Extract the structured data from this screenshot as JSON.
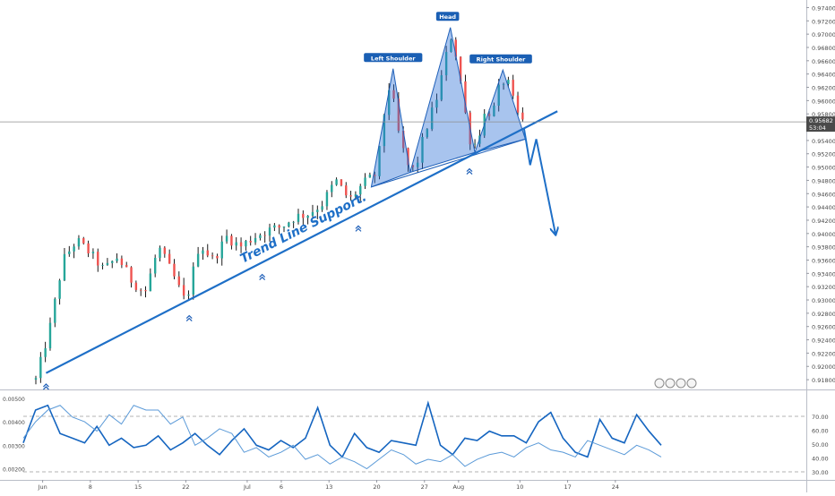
{
  "chart_data": [
    {
      "type": "candlestick",
      "title": "",
      "price_axis": {
        "ylim": [
          0.9168,
          0.9746
        ],
        "ticks": [
          "0.97400",
          "0.97200",
          "0.97000",
          "0.96800",
          "0.96600",
          "0.96400",
          "0.96200",
          "0.96000",
          "0.95800",
          "0.95600",
          "0.95400",
          "0.95200",
          "0.95000",
          "0.94800",
          "0.94600",
          "0.94400",
          "0.94200",
          "0.94000",
          "0.93800",
          "0.93600",
          "0.93400",
          "0.93200",
          "0.93000",
          "0.92800",
          "0.92600",
          "0.92400",
          "0.92200",
          "0.92000",
          "0.91800"
        ]
      },
      "time_axis": {
        "labels": [
          "Jun",
          "8",
          "15",
          "22",
          "Jul",
          "6",
          "13",
          "20",
          "27",
          "Aug",
          "10",
          "17",
          "24"
        ],
        "label_days": [
          1,
          8,
          15,
          22,
          31,
          36,
          43,
          50,
          57,
          62,
          71,
          78,
          85
        ]
      },
      "current_price": {
        "value": "0.95682",
        "countdown": "53:04",
        "level": 0.9568
      },
      "colors": {
        "up": "#26a69a",
        "down": "#ef5350",
        "candle": "#000000",
        "annotation": "#1e6fc7",
        "pattern_fill": "#2f73d6",
        "price_label_bg": "#4a4a4a",
        "osc_line_1": "#1565c0",
        "osc_line_2": "#5b9ad8"
      },
      "candles": [
        {
          "day": 0,
          "value": 0.918
        },
        {
          "day": 2,
          "value": 0.9255
        },
        {
          "day": 4,
          "value": 0.936
        },
        {
          "day": 6,
          "value": 0.939
        },
        {
          "day": 8,
          "value": 0.937
        },
        {
          "day": 10,
          "value": 0.9345
        },
        {
          "day": 12,
          "value": 0.9365
        },
        {
          "day": 14,
          "value": 0.933
        },
        {
          "day": 16,
          "value": 0.931
        },
        {
          "day": 18,
          "value": 0.938
        },
        {
          "day": 20,
          "value": 0.934
        },
        {
          "day": 22,
          "value": 0.9295
        },
        {
          "day": 24,
          "value": 0.9385
        },
        {
          "day": 26,
          "value": 0.936
        },
        {
          "day": 28,
          "value": 0.9395
        },
        {
          "day": 30,
          "value": 0.938
        },
        {
          "day": 32,
          "value": 0.9395
        },
        {
          "day": 34,
          "value": 0.9405
        },
        {
          "day": 36,
          "value": 0.941
        },
        {
          "day": 38,
          "value": 0.9425
        },
        {
          "day": 40,
          "value": 0.943
        },
        {
          "day": 42,
          "value": 0.9445
        },
        {
          "day": 44,
          "value": 0.948
        },
        {
          "day": 45,
          "value": 0.9465
        },
        {
          "day": 46,
          "value": 0.945
        },
        {
          "day": 48,
          "value": 0.9475
        },
        {
          "day": 50,
          "value": 0.949
        },
        {
          "day": 51,
          "value": 0.9575
        },
        {
          "day": 52,
          "value": 0.963
        },
        {
          "day": 53,
          "value": 0.956
        },
        {
          "day": 54,
          "value": 0.952
        },
        {
          "day": 55,
          "value": 0.949
        },
        {
          "day": 56,
          "value": 0.951
        },
        {
          "day": 57,
          "value": 0.955
        },
        {
          "day": 58,
          "value": 0.958
        },
        {
          "day": 59,
          "value": 0.961
        },
        {
          "day": 60,
          "value": 0.966
        },
        {
          "day": 61,
          "value": 0.97
        },
        {
          "day": 62,
          "value": 0.965
        },
        {
          "day": 63,
          "value": 0.958
        },
        {
          "day": 64,
          "value": 0.9525
        },
        {
          "day": 65,
          "value": 0.955
        },
        {
          "day": 66,
          "value": 0.9585
        },
        {
          "day": 67,
          "value": 0.958
        },
        {
          "day": 68,
          "value": 0.962
        },
        {
          "day": 69,
          "value": 0.9635
        },
        {
          "day": 70,
          "value": 0.96
        },
        {
          "day": 71,
          "value": 0.957
        },
        {
          "day": 71.5,
          "value": 0.9568
        }
      ],
      "trend_line": {
        "from": {
          "day": 1.5,
          "value": 0.919
        },
        "to": {
          "day": 76.5,
          "value": 0.9584
        },
        "label": "Trend Line Support."
      },
      "pattern": {
        "points": [
          {
            "day": 49.2,
            "value": 0.947
          },
          {
            "day": 52.4,
            "value": 0.9648
          },
          {
            "day": 54.9,
            "value": 0.9492
          },
          {
            "day": 60.8,
            "value": 0.971
          },
          {
            "day": 64.4,
            "value": 0.9522
          },
          {
            "day": 68.5,
            "value": 0.9646
          },
          {
            "day": 71.8,
            "value": 0.9542
          }
        ],
        "labels": [
          {
            "text": "Left Shoulder",
            "day": 52.4,
            "value": 0.965
          },
          {
            "text": "Head",
            "day": 60.4,
            "value": 0.9712
          },
          {
            "text": "Right Shoulder",
            "day": 68.2,
            "value": 0.9648
          }
        ]
      },
      "projection": [
        {
          "day": 71.6,
          "value": 0.9558
        },
        {
          "day": 72.5,
          "value": 0.9503
        },
        {
          "day": 73.4,
          "value": 0.9542
        },
        {
          "day": 76.2,
          "value": 0.94
        }
      ],
      "markers": [
        {
          "day": 1.5,
          "value": 0.9172
        },
        {
          "day": 22.5,
          "value": 0.9275
        },
        {
          "day": 33.2,
          "value": 0.9337
        },
        {
          "day": 47.3,
          "value": 0.941
        },
        {
          "day": 63.6,
          "value": 0.9496
        }
      ]
    },
    {
      "type": "line",
      "title": "",
      "ylim": [
        0.0016,
        0.0053
      ],
      "y_ticks": [
        "0.00500",
        "0.00400",
        "0.00300",
        "0.00200"
      ],
      "series": [
        {
          "values": [
            0.0031,
            0.0045,
            0.0047,
            0.0035,
            0.0033,
            0.0031,
            0.0038,
            0.003,
            0.0033,
            0.0029,
            0.003,
            0.0034,
            0.0028,
            0.0031,
            0.0035,
            0.003,
            0.0026,
            0.0032,
            0.0037,
            0.003,
            0.0028,
            0.0032,
            0.0029,
            0.0033,
            0.0046,
            0.003,
            0.0025,
            0.0035,
            0.0029,
            0.0027,
            0.0032,
            0.0031,
            0.003,
            0.0048,
            0.003,
            0.0026,
            0.0033,
            0.0032,
            0.0036,
            0.0034,
            0.0034,
            0.0031,
            0.004,
            0.0044,
            0.0033,
            0.0027,
            0.0025,
            0.0041,
            0.0033,
            0.0031,
            0.0043,
            0.0036,
            0.003
          ]
        },
        {
          "values": [
            0.0033,
            0.004,
            0.0045,
            0.0047,
            0.0042,
            0.004,
            0.0036,
            0.0043,
            0.0039,
            0.0047,
            0.0045,
            0.0045,
            0.0039,
            0.0042,
            0.003,
            0.0033,
            0.0037,
            0.0035,
            0.0027,
            0.0029,
            0.0025,
            0.0027,
            0.003,
            0.0024,
            0.0026,
            0.0022,
            0.0025,
            0.0023,
            0.002,
            0.0024,
            0.0028,
            0.0026,
            0.0022,
            0.0024,
            0.0023,
            0.0026,
            0.0021,
            0.0024,
            0.0026,
            0.0027,
            0.0025,
            0.0029,
            0.0031,
            0.0028,
            0.0027,
            0.0025,
            0.0032,
            0.003,
            0.0028,
            0.0026,
            0.003,
            0.0028,
            0.0025
          ]
        }
      ],
      "right_axis_ticks": [
        "70.00",
        "60.00",
        "50.00",
        "40.00",
        "30.00"
      ],
      "reference_levels": [
        70,
        30
      ]
    }
  ]
}
